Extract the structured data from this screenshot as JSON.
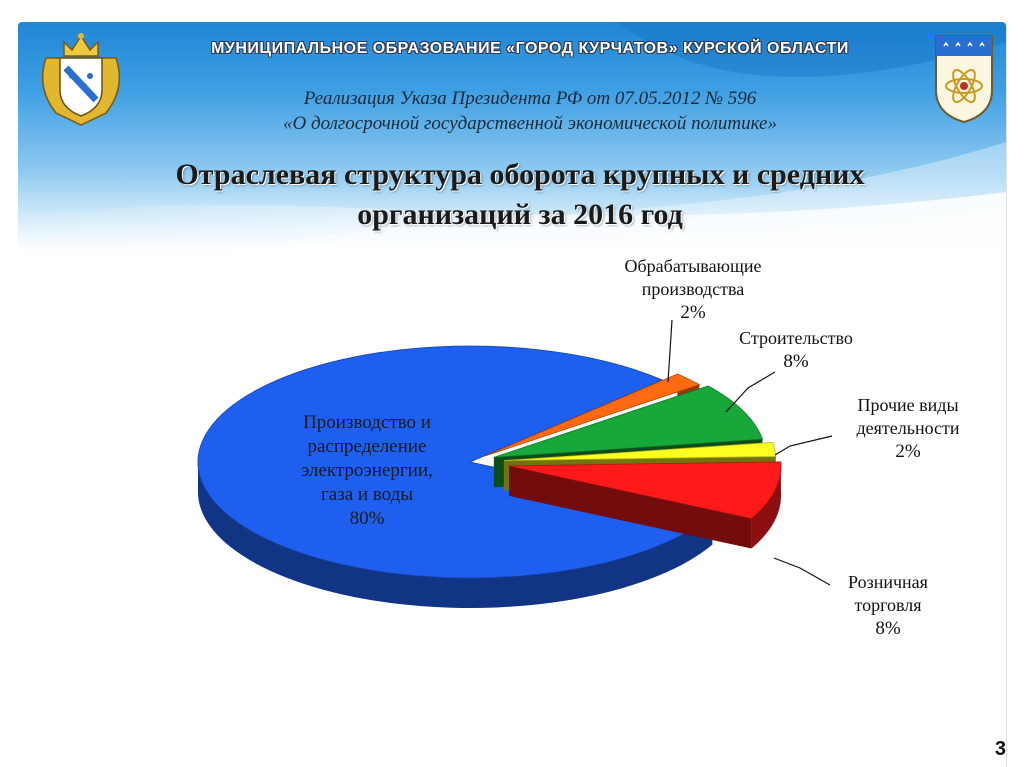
{
  "header": {
    "organization": "МУНИЦИПАЛЬНОЕ  ОБРАЗОВАНИЕ  «ГОРОД КУРЧАТОВ»  КУРСКОЙ  ОБЛАСТИ",
    "subtitle_line1": "Реализация Указа Президента РФ от 07.05.2012 № 596",
    "subtitle_line2": "«О долгосрочной государственной экономической политике»",
    "title_line1": "Отраслевая структура оборота крупных и средних",
    "title_line2": "организаций  за 2016 год"
  },
  "emblems": {
    "left": "kursk-region-coat-of-arms",
    "right": "kurchatov-city-coat-of-arms"
  },
  "colors": {
    "energy": "#1f5ff0",
    "manufacturing": "#ff6a10",
    "construction": "#18a83a",
    "other": "#ffff20",
    "retail": "#ff1a1a"
  },
  "chart_data": {
    "type": "pie",
    "style": "3d-exploded",
    "title": "Отраслевая структура оборота крупных и средних организаций  за 2016 год",
    "slices": [
      {
        "key": "energy",
        "label": "Производство и распределение электроэнергии, газа и воды",
        "value": 80,
        "display": "80%"
      },
      {
        "key": "manufacturing",
        "label": "Обрабатывающие производства",
        "value": 2,
        "display": "2%"
      },
      {
        "key": "construction",
        "label": "Строительство",
        "value": 8,
        "display": "8%"
      },
      {
        "key": "other",
        "label": "Прочие виды деятельности",
        "value": 2,
        "display": "2%"
      },
      {
        "key": "retail",
        "label": "Розничная торговля",
        "value": 8,
        "display": "8%"
      }
    ]
  },
  "labels": {
    "energy": [
      "Производство и",
      "распределение",
      "электроэнергии,",
      "газа и воды"
    ],
    "manufacturing": [
      "Обрабатывающие",
      "производства"
    ],
    "construction": [
      "Строительство"
    ],
    "other": [
      "Прочие виды",
      "деятельности"
    ],
    "retail": [
      "Розничная",
      "торговля"
    ]
  },
  "page_number": "3"
}
